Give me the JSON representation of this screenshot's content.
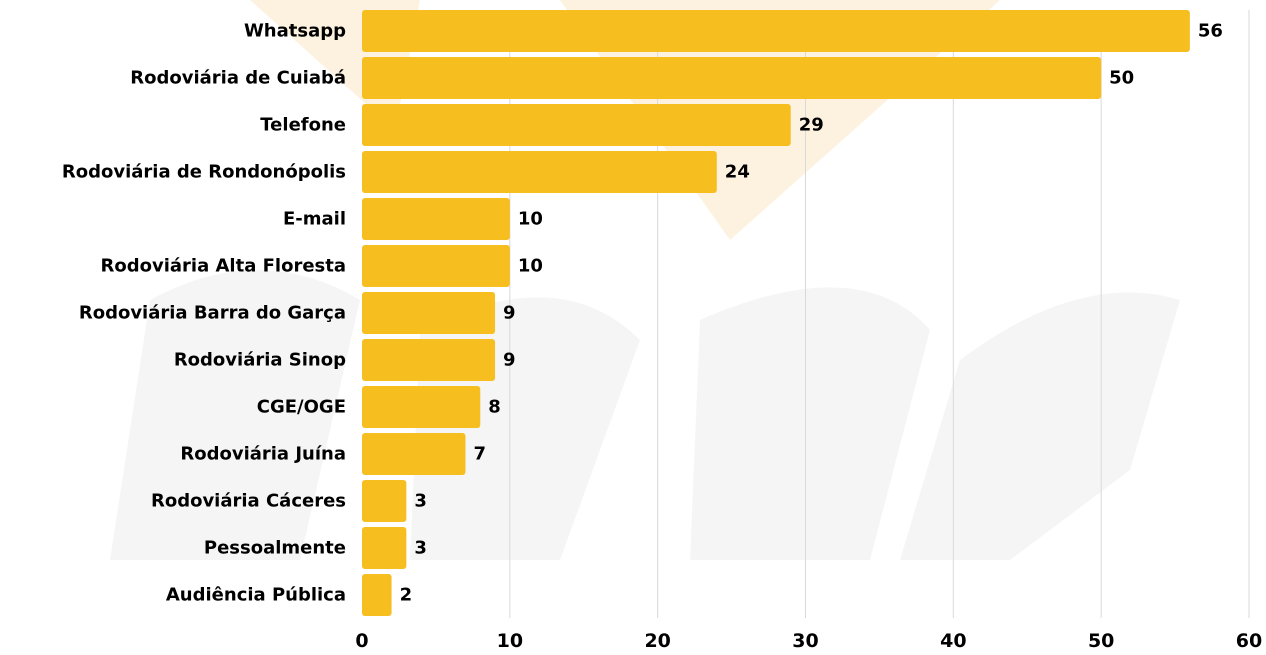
{
  "chart_data": {
    "type": "bar",
    "orientation": "horizontal",
    "categories": [
      "Whatsapp",
      "Rodoviária de Cuiabá",
      "Telefone",
      "Rodoviária de Rondonópolis",
      "E-mail",
      "Rodoviária Alta Floresta",
      "Rodoviária Barra do Garça",
      "Rodoviária Sinop",
      "CGE/OGE",
      "Rodoviária Juína",
      "Rodoviária Cáceres",
      "Pessoalmente",
      "Audiência Pública"
    ],
    "values": [
      56,
      50,
      29,
      24,
      10,
      10,
      9,
      9,
      8,
      7,
      3,
      3,
      2
    ],
    "value_labels": [
      "56",
      "50",
      "29",
      "24",
      "10",
      "10",
      "9",
      "9",
      "8",
      "7",
      "3",
      "3",
      "2"
    ],
    "xlim": [
      0,
      60
    ],
    "xticks": [
      0,
      10,
      20,
      30,
      40,
      50,
      60
    ],
    "xtick_labels": [
      "0",
      "10",
      "20",
      "30",
      "40",
      "50",
      "60"
    ],
    "grid": "vertical",
    "title": "",
    "xlabel": "",
    "ylabel": "",
    "colors": {
      "bar": "#F7BE1F",
      "grid": "#D9D9D9",
      "text": "#000000",
      "watermark": "#EDEDED",
      "watermark_accent": "#FDEFD8"
    }
  }
}
